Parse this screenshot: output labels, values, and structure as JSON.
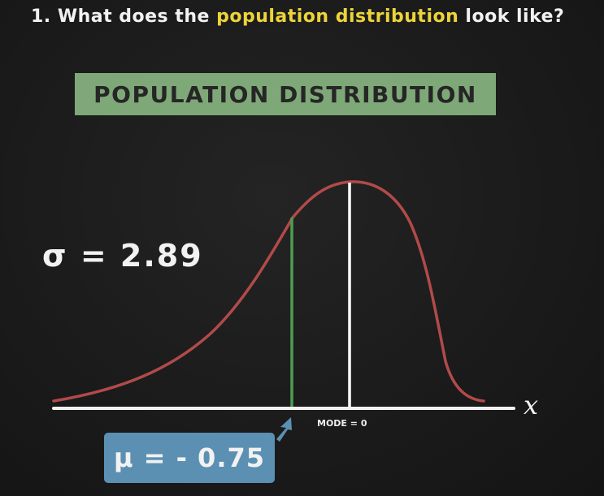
{
  "question": {
    "prefix": "1. What does the ",
    "highlight": "population distribution",
    "suffix": " look like?"
  },
  "title": "POPULATION DISTRIBUTION",
  "sigma_label": "σ = 2.89",
  "mu_label": "μ = - 0.75",
  "mode_label": "MODE = 0",
  "x_axis_label": "x",
  "colors": {
    "background": "#1b1b1b",
    "highlight": "#ecd43a",
    "title_box": "#7fa878",
    "curve": "#b24a4a",
    "mean_line": "#4f9c52",
    "mode_line": "#ffffff",
    "mu_box": "#5b90b3",
    "mu_arrow": "#5b90b3"
  }
}
